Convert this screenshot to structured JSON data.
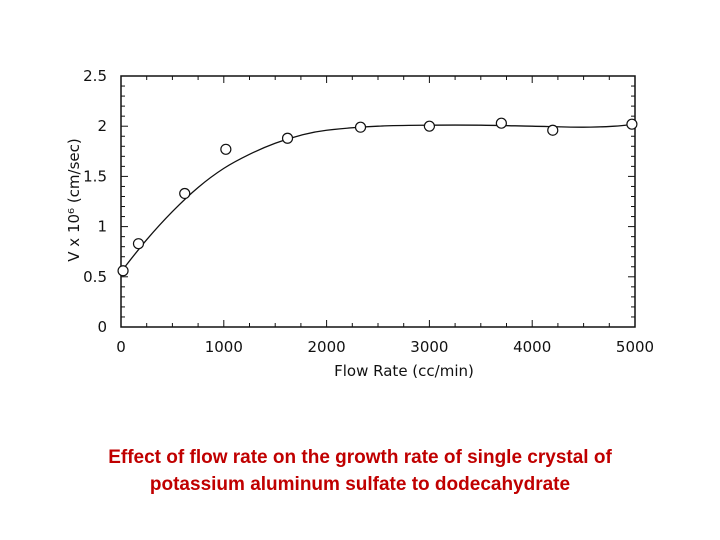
{
  "caption": {
    "line1": "Effect of flow rate on the growth rate of single crystal of",
    "line2": "potassium aluminum sulfate to dodecahydrate",
    "color": "#c00000"
  },
  "chart_data": {
    "type": "scatter",
    "title": "",
    "xlabel": "Flow  Rate  (cc/min)",
    "ylabel": "V x 10⁶ (cm/sec)",
    "xlim": [
      0,
      5000
    ],
    "ylim": [
      0,
      2.5
    ],
    "x_ticks": [
      "0",
      "1000",
      "2000",
      "3000",
      "4000",
      "5000"
    ],
    "y_ticks": [
      "0",
      "0.5",
      "1",
      "1.5",
      "2",
      "2.5"
    ],
    "grid": false,
    "series": [
      {
        "marker": "open-circle",
        "points": [
          {
            "x": 20,
            "y": 0.56
          },
          {
            "x": 170,
            "y": 0.83
          },
          {
            "x": 620,
            "y": 1.33
          },
          {
            "x": 1020,
            "y": 1.77
          },
          {
            "x": 1620,
            "y": 1.88
          },
          {
            "x": 2330,
            "y": 1.99
          },
          {
            "x": 3000,
            "y": 2.0
          },
          {
            "x": 3700,
            "y": 2.03
          },
          {
            "x": 4200,
            "y": 1.96
          },
          {
            "x": 4970,
            "y": 2.02
          }
        ]
      },
      {
        "style": "fitted-curve",
        "points": [
          {
            "x": 0,
            "y": 0.55
          },
          {
            "x": 250,
            "y": 0.87
          },
          {
            "x": 500,
            "y": 1.15
          },
          {
            "x": 750,
            "y": 1.39
          },
          {
            "x": 1000,
            "y": 1.58
          },
          {
            "x": 1250,
            "y": 1.72
          },
          {
            "x": 1500,
            "y": 1.83
          },
          {
            "x": 1750,
            "y": 1.91
          },
          {
            "x": 2000,
            "y": 1.96
          },
          {
            "x": 2500,
            "y": 2.0
          },
          {
            "x": 3000,
            "y": 2.01
          },
          {
            "x": 3500,
            "y": 2.01
          },
          {
            "x": 4000,
            "y": 2.0
          },
          {
            "x": 4500,
            "y": 1.99
          },
          {
            "x": 4800,
            "y": 2.0
          },
          {
            "x": 5000,
            "y": 2.02
          }
        ]
      }
    ]
  }
}
